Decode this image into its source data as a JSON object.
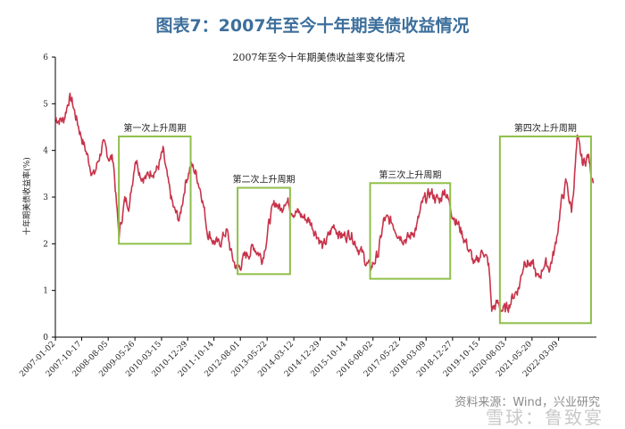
{
  "figure_title": "图表7：2007年至今十年期美债收益情况",
  "source": "资料来源：Wind，兴业研究",
  "watermark": "雪球：鲁致宴",
  "chart_data": {
    "type": "line",
    "title": "2007年至今十年期美债收益率变化情况",
    "ylabel": "十年期美债收益率(%)",
    "ylim": [
      0,
      6
    ],
    "yticks": [
      0,
      1,
      2,
      3,
      4,
      5,
      6
    ],
    "x_tick_labels": [
      "2007-01-02",
      "2007-10-17",
      "2008-08-05",
      "2009-05-26",
      "2010-03-15",
      "2010-12-29",
      "2011-10-14",
      "2012-08-01",
      "2013-05-22",
      "2014-03-12",
      "2014-12-29",
      "2015-10-14",
      "2016-08-02",
      "2017-05-22",
      "2018-03-09",
      "2018-12-27",
      "2019-10-15",
      "2020-08-03",
      "2021-05-20",
      "2022-03-09"
    ],
    "line_color": "#c8334a",
    "box_color": "#8fbf4a",
    "series": [
      {
        "name": "",
        "points": [
          [
            "2007-01",
            4.7
          ],
          [
            "2007-04",
            4.65
          ],
          [
            "2007-06",
            5.15
          ],
          [
            "2007-07",
            5.05
          ],
          [
            "2007-09",
            4.6
          ],
          [
            "2007-11",
            4.2
          ],
          [
            "2008-01",
            3.8
          ],
          [
            "2008-03",
            3.45
          ],
          [
            "2008-06",
            4.1
          ],
          [
            "2008-08",
            3.9
          ],
          [
            "2008-10",
            3.8
          ],
          [
            "2008-12",
            2.15
          ],
          [
            "2009-02",
            2.9
          ],
          [
            "2009-04",
            2.9
          ],
          [
            "2009-06",
            3.9
          ],
          [
            "2009-08",
            3.5
          ],
          [
            "2009-10",
            3.4
          ],
          [
            "2009-12",
            3.6
          ],
          [
            "2010-02",
            3.6
          ],
          [
            "2010-04",
            3.95
          ],
          [
            "2010-06",
            3.2
          ],
          [
            "2010-08",
            2.7
          ],
          [
            "2010-10",
            2.5
          ],
          [
            "2010-12",
            3.3
          ],
          [
            "2011-02",
            3.7
          ],
          [
            "2011-04",
            3.5
          ],
          [
            "2011-06",
            3.1
          ],
          [
            "2011-08",
            2.3
          ],
          [
            "2011-10",
            2.1
          ],
          [
            "2011-12",
            1.95
          ],
          [
            "2012-03",
            2.3
          ],
          [
            "2012-05",
            1.7
          ],
          [
            "2012-07",
            1.45
          ],
          [
            "2012-10",
            1.75
          ],
          [
            "2013-01",
            1.95
          ],
          [
            "2013-04",
            1.7
          ],
          [
            "2013-07",
            2.6
          ],
          [
            "2013-09",
            2.9
          ],
          [
            "2013-11",
            2.7
          ],
          [
            "2013-12",
            3.0
          ],
          [
            "2014-03",
            2.75
          ],
          [
            "2014-06",
            2.6
          ],
          [
            "2014-09",
            2.5
          ],
          [
            "2014-12",
            2.2
          ],
          [
            "2015-02",
            1.9
          ],
          [
            "2015-04",
            2.15
          ],
          [
            "2015-06",
            2.4
          ],
          [
            "2015-09",
            2.15
          ],
          [
            "2015-12",
            2.25
          ],
          [
            "2016-03",
            1.9
          ],
          [
            "2016-07",
            1.45
          ],
          [
            "2016-10",
            1.8
          ],
          [
            "2016-12",
            2.5
          ],
          [
            "2017-03",
            2.45
          ],
          [
            "2017-06",
            2.2
          ],
          [
            "2017-09",
            2.1
          ],
          [
            "2017-12",
            2.4
          ],
          [
            "2018-02",
            2.85
          ],
          [
            "2018-05",
            3.1
          ],
          [
            "2018-08",
            2.9
          ],
          [
            "2018-10",
            3.2
          ],
          [
            "2018-12",
            2.8
          ],
          [
            "2019-03",
            2.4
          ],
          [
            "2019-06",
            2.0
          ],
          [
            "2019-09",
            1.5
          ],
          [
            "2019-12",
            1.9
          ],
          [
            "2020-02",
            1.5
          ],
          [
            "2020-03",
            0.6
          ],
          [
            "2020-05",
            0.7
          ],
          [
            "2020-08",
            0.55
          ],
          [
            "2020-10",
            0.8
          ],
          [
            "2021-01",
            1.1
          ],
          [
            "2021-03",
            1.7
          ],
          [
            "2021-06",
            1.5
          ],
          [
            "2021-08",
            1.2
          ],
          [
            "2021-10",
            1.6
          ],
          [
            "2021-12",
            1.5
          ],
          [
            "2022-02",
            1.9
          ],
          [
            "2022-04",
            2.8
          ],
          [
            "2022-06",
            3.3
          ],
          [
            "2022-08",
            2.7
          ],
          [
            "2022-10",
            4.2
          ],
          [
            "2022-12",
            3.7
          ],
          [
            "2023-02",
            3.9
          ],
          [
            "2023-03",
            3.5
          ],
          [
            "2023-04",
            3.45
          ]
        ]
      }
    ],
    "annotations": [
      {
        "label": "第一次上升周期",
        "x_range": [
          "2008-12",
          "2011-02"
        ],
        "y_range": [
          2.0,
          4.3
        ]
      },
      {
        "label": "第二次上升周期",
        "x_range": [
          "2012-07",
          "2014-02"
        ],
        "y_range": [
          1.35,
          3.2
        ]
      },
      {
        "label": "第三次上升周期",
        "x_range": [
          "2016-07",
          "2018-12"
        ],
        "y_range": [
          1.25,
          3.3
        ]
      },
      {
        "label": "第四次上升周期",
        "x_range": [
          "2020-06",
          "2023-03"
        ],
        "y_range": [
          0.3,
          4.3
        ]
      }
    ]
  }
}
